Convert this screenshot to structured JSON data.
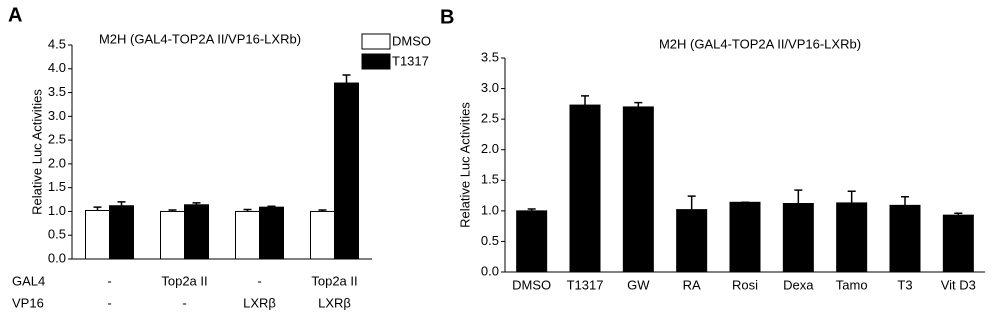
{
  "chart_data": [
    {
      "type": "bar",
      "panel": "A",
      "title": "M2H (GAL4-TOP2A II/VP16-LXRb)",
      "y_label": "Relative Luc Activities",
      "category_rows": [
        {
          "name": "GAL4",
          "labels": [
            "-",
            "Top2a II",
            "-",
            "Top2a II"
          ]
        },
        {
          "name": "VP16",
          "labels": [
            "-",
            "-",
            "LXRβ",
            "LXRβ"
          ]
        }
      ],
      "series": [
        {
          "name": "DMSO",
          "color": "#ffffff",
          "values": [
            1.02,
            1.0,
            1.0,
            1.0
          ],
          "errors": [
            0.07,
            0.03,
            0.04,
            0.03
          ]
        },
        {
          "name": "T1317",
          "color": "#000000",
          "values": [
            1.12,
            1.14,
            1.09,
            3.7
          ],
          "errors": [
            0.08,
            0.04,
            0.02,
            0.17
          ]
        }
      ],
      "ylim": [
        0,
        4.5
      ],
      "yticks": [
        {
          "value": 0,
          "label": "0.0"
        },
        0.5,
        {
          "value": 1,
          "label": "1.0"
        },
        1.5,
        {
          "value": 2,
          "label": "2.0"
        },
        2.5,
        {
          "value": 3,
          "label": "3.0"
        },
        3.5,
        {
          "value": 4,
          "label": "4.0"
        },
        4.5
      ]
    },
    {
      "type": "bar",
      "panel": "B",
      "title": "M2H (GAL4-TOP2A II/VP16-LXRb)",
      "y_label": "Relative Luc Activities",
      "categories": [
        "DMSO",
        "T1317",
        "GW",
        "RA",
        "Rosi",
        "Dexa",
        "Tamo",
        "T3",
        "Vit D3"
      ],
      "color": "#000000",
      "values": [
        1.0,
        2.73,
        2.7,
        1.02,
        1.14,
        1.12,
        1.13,
        1.09,
        0.93
      ],
      "errors": [
        0.03,
        0.15,
        0.07,
        0.22,
        0.0,
        0.22,
        0.19,
        0.14,
        0.03
      ],
      "ylim": [
        0,
        3.5
      ],
      "yticks": [
        {
          "value": 0,
          "label": "0.0"
        },
        0.5,
        {
          "value": 1,
          "label": "1.0"
        },
        1.5,
        {
          "value": 2,
          "label": "2.0"
        },
        2.5,
        {
          "value": 3,
          "label": "3.0"
        },
        3.5
      ]
    }
  ]
}
